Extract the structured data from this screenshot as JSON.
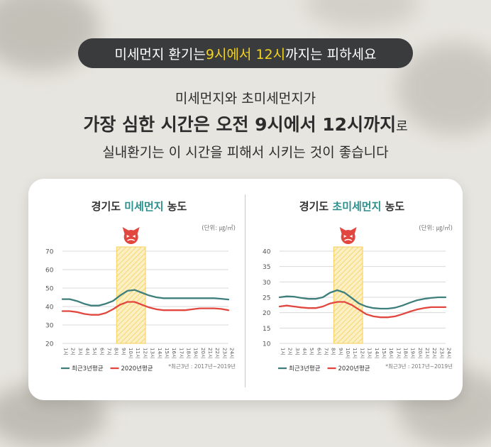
{
  "banner": {
    "pre": "미세먼지 환기는 ",
    "highlight": "9시에서 12시",
    "post": "까지는 피하세요"
  },
  "subtitle": {
    "line1": "미세먼지와 초미세먼지가",
    "line2_main": "가장 심한 시간은 오전 9시에서 12시까지",
    "line2_tail": "로",
    "line3": "실내환기는 이 시간을 피해서 시키는 것이 좋습니다"
  },
  "colors": {
    "series_recent": "#3e7f7c",
    "series_2020": "#e1473f",
    "highlight_box": "#f6cf5b",
    "devil": "#e1473f",
    "title_accent": "#2c8f8c"
  },
  "icons": {
    "peak_marker": "devil-face-icon"
  },
  "chart_data": [
    {
      "type": "line",
      "title_pre": "경기도 ",
      "title_highlight": "미세먼지",
      "title_post": " 농도",
      "unit_label": "(단위: ㎍/㎥)",
      "categories": [
        "1시",
        "2시",
        "3시",
        "4시",
        "5시",
        "6시",
        "7시",
        "8시",
        "9시",
        "10시",
        "11시",
        "12시",
        "13시",
        "14시",
        "15시",
        "16시",
        "17시",
        "18시",
        "19시",
        "20시",
        "21시",
        "22시",
        "23시",
        "24시"
      ],
      "ylim": [
        20,
        70
      ],
      "yticks": [
        20,
        30,
        40,
        50,
        60,
        70
      ],
      "highlight_range": [
        "9시",
        "12시"
      ],
      "grid": true,
      "legend_position": "bottom-left",
      "footnote": "*최근3년 : 2017년~2019년",
      "series": [
        {
          "name": "최근3년평균",
          "color": "#3e7f7c",
          "values": [
            44,
            44,
            43,
            41.5,
            40.5,
            40.5,
            41.5,
            43,
            46,
            48.5,
            49,
            47.5,
            46,
            45,
            44.5,
            44.5,
            44.5,
            44.5,
            44.5,
            44.5,
            44.5,
            44.5,
            44.2,
            43.8
          ]
        },
        {
          "name": "2020년평균",
          "color": "#e1473f",
          "values": [
            37.5,
            37.5,
            37,
            36,
            35.5,
            35.5,
            36.5,
            38.5,
            41,
            42.5,
            42.5,
            41,
            39.5,
            38.5,
            38,
            38,
            38,
            38,
            38.5,
            39,
            39,
            39,
            38.7,
            38
          ]
        }
      ]
    },
    {
      "type": "line",
      "title_pre": "경기도 ",
      "title_highlight": "초미세먼지",
      "title_post": " 농도",
      "unit_label": "(단위: ㎍/㎥)",
      "categories": [
        "1시",
        "2시",
        "3시",
        "4시",
        "5시",
        "6시",
        "7시",
        "8시",
        "9시",
        "10시",
        "11시",
        "12시",
        "13시",
        "14시",
        "15시",
        "16시",
        "17시",
        "18시",
        "19시",
        "20시",
        "21시",
        "22시",
        "23시",
        "24시"
      ],
      "ylim": [
        10,
        40
      ],
      "yticks": [
        10,
        15,
        20,
        25,
        30,
        35,
        40
      ],
      "highlight_range": [
        "9시",
        "12시"
      ],
      "grid": true,
      "legend_position": "bottom-left",
      "footnote": "*최근3년 : 2017년~2019년",
      "series": [
        {
          "name": "최근3년평균",
          "color": "#3e7f7c",
          "values": [
            25,
            25.3,
            25.2,
            24.8,
            24.5,
            24.5,
            25,
            26.5,
            27.3,
            26.5,
            24.8,
            23,
            22,
            21.5,
            21.3,
            21.3,
            21.6,
            22.3,
            23.2,
            24,
            24.5,
            24.8,
            25,
            25
          ]
        },
        {
          "name": "2020년평균",
          "color": "#e1473f",
          "values": [
            22,
            22.3,
            22,
            21.7,
            21.5,
            21.5,
            22,
            23,
            23.5,
            23.5,
            22.5,
            21,
            19.5,
            18.8,
            18.5,
            18.5,
            18.8,
            19.5,
            20.3,
            21,
            21.5,
            21.8,
            21.8,
            21.8
          ]
        }
      ]
    }
  ]
}
